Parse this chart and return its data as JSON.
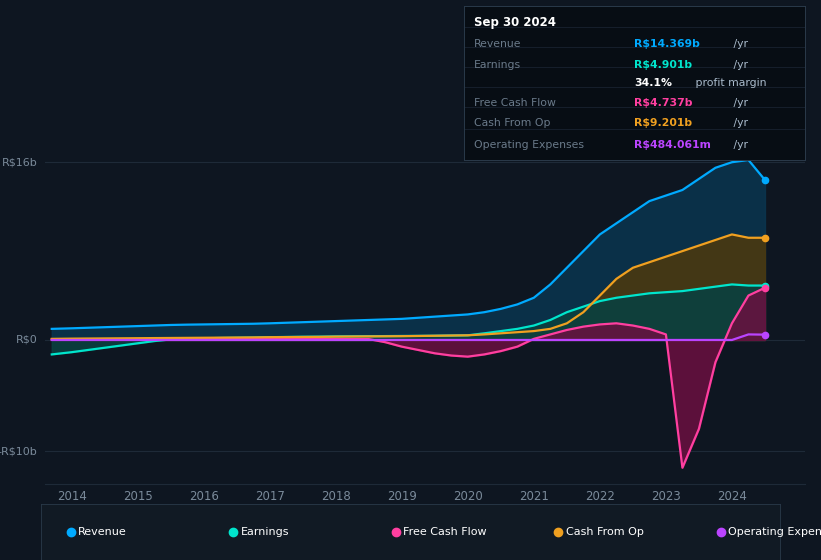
{
  "bg_color": "#0e1621",
  "grid_color": "#1e2a38",
  "years": [
    2013.7,
    2014.0,
    2014.25,
    2014.5,
    2014.75,
    2015.0,
    2015.25,
    2015.5,
    2015.75,
    2016.0,
    2016.25,
    2016.5,
    2016.75,
    2017.0,
    2017.25,
    2017.5,
    2017.75,
    2018.0,
    2018.25,
    2018.5,
    2018.75,
    2019.0,
    2019.25,
    2019.5,
    2019.75,
    2020.0,
    2020.25,
    2020.5,
    2020.75,
    2021.0,
    2021.25,
    2021.5,
    2021.75,
    2022.0,
    2022.25,
    2022.5,
    2022.75,
    2023.0,
    2023.25,
    2023.5,
    2023.75,
    2024.0,
    2024.25,
    2024.5
  ],
  "revenue": [
    1.0,
    1.05,
    1.1,
    1.15,
    1.2,
    1.25,
    1.3,
    1.35,
    1.38,
    1.4,
    1.42,
    1.44,
    1.46,
    1.5,
    1.55,
    1.6,
    1.65,
    1.7,
    1.75,
    1.8,
    1.85,
    1.9,
    2.0,
    2.1,
    2.2,
    2.3,
    2.5,
    2.8,
    3.2,
    3.8,
    5.0,
    6.5,
    8.0,
    9.5,
    10.5,
    11.5,
    12.5,
    13.0,
    13.5,
    14.5,
    15.5,
    16.0,
    16.2,
    14.4
  ],
  "earnings": [
    -1.3,
    -1.1,
    -0.9,
    -0.7,
    -0.5,
    -0.3,
    -0.1,
    0.05,
    0.1,
    0.15,
    0.18,
    0.2,
    0.22,
    0.25,
    0.27,
    0.29,
    0.3,
    0.32,
    0.33,
    0.34,
    0.35,
    0.36,
    0.37,
    0.38,
    0.4,
    0.42,
    0.6,
    0.8,
    1.0,
    1.3,
    1.8,
    2.5,
    3.0,
    3.5,
    3.8,
    4.0,
    4.2,
    4.3,
    4.4,
    4.6,
    4.8,
    5.0,
    4.9,
    4.9
  ],
  "free_cash_flow": [
    0.05,
    0.05,
    0.05,
    0.06,
    0.07,
    0.08,
    0.08,
    0.08,
    0.08,
    0.08,
    0.08,
    0.08,
    0.08,
    0.08,
    0.08,
    0.08,
    0.08,
    0.08,
    0.08,
    0.08,
    -0.2,
    -0.6,
    -0.9,
    -1.2,
    -1.4,
    -1.5,
    -1.3,
    -1.0,
    -0.6,
    0.1,
    0.5,
    0.9,
    1.2,
    1.4,
    1.5,
    1.3,
    1.0,
    0.5,
    -11.5,
    -8.0,
    -2.0,
    1.5,
    4.0,
    4.7
  ],
  "cash_from_op": [
    0.1,
    0.12,
    0.13,
    0.14,
    0.15,
    0.16,
    0.17,
    0.18,
    0.19,
    0.2,
    0.21,
    0.22,
    0.23,
    0.25,
    0.26,
    0.27,
    0.28,
    0.3,
    0.31,
    0.32,
    0.33,
    0.34,
    0.36,
    0.38,
    0.4,
    0.42,
    0.5,
    0.6,
    0.7,
    0.8,
    1.0,
    1.5,
    2.5,
    4.0,
    5.5,
    6.5,
    7.0,
    7.5,
    8.0,
    8.5,
    9.0,
    9.5,
    9.2,
    9.2
  ],
  "op_expenses": [
    0.0,
    0.0,
    0.0,
    0.0,
    0.0,
    0.0,
    0.0,
    0.0,
    0.0,
    0.0,
    0.0,
    0.0,
    0.0,
    0.0,
    0.0,
    0.0,
    0.0,
    0.0,
    0.0,
    0.0,
    0.0,
    0.0,
    0.0,
    0.0,
    0.0,
    0.0,
    0.0,
    0.0,
    0.0,
    0.0,
    0.0,
    0.0,
    0.0,
    0.0,
    0.0,
    0.0,
    0.0,
    0.0,
    0.0,
    0.0,
    0.0,
    0.0,
    0.5,
    0.48
  ],
  "revenue_color": "#00aaff",
  "earnings_color": "#00e5cc",
  "fcf_color": "#ff3fa0",
  "cfo_color": "#f0a020",
  "opex_color": "#bb44ff",
  "revenue_fill": "#0a3550",
  "earnings_fill": "#0a4040",
  "fcf_fill_pos": "#5a1030",
  "fcf_fill_neg": "#6a1040",
  "cfo_fill": "#4a3810",
  "ylim": [
    -13,
    18
  ],
  "xlim_start": 2013.6,
  "xlim_end": 2025.1,
  "xticks": [
    2014,
    2015,
    2016,
    2017,
    2018,
    2019,
    2020,
    2021,
    2022,
    2023,
    2024
  ],
  "ytick_labels": [
    "R$16b",
    "R$0",
    "-R$10b"
  ],
  "ytick_vals": [
    16,
    0,
    -10
  ],
  "info_date": "Sep 30 2024",
  "info_rows": [
    {
      "label": "Revenue",
      "value": "R$14.369b",
      "value_color": "#00aaff"
    },
    {
      "label": "Earnings",
      "value": "R$4.901b",
      "value_color": "#00e5cc"
    },
    {
      "label": "",
      "value": "34.1%",
      "value_color": "#ffffff",
      "extra": " profit margin"
    },
    {
      "label": "Free Cash Flow",
      "value": "R$4.737b",
      "value_color": "#ff3fa0"
    },
    {
      "label": "Cash From Op",
      "value": "R$9.201b",
      "value_color": "#f0a020"
    },
    {
      "label": "Operating Expenses",
      "value": "R$484.061m",
      "value_color": "#bb44ff"
    }
  ],
  "legend_items": [
    {
      "label": "Revenue",
      "color": "#00aaff"
    },
    {
      "label": "Earnings",
      "color": "#00e5cc"
    },
    {
      "label": "Free Cash Flow",
      "color": "#ff3fa0"
    },
    {
      "label": "Cash From Op",
      "color": "#f0a020"
    },
    {
      "label": "Operating Expenses",
      "color": "#bb44ff"
    }
  ]
}
